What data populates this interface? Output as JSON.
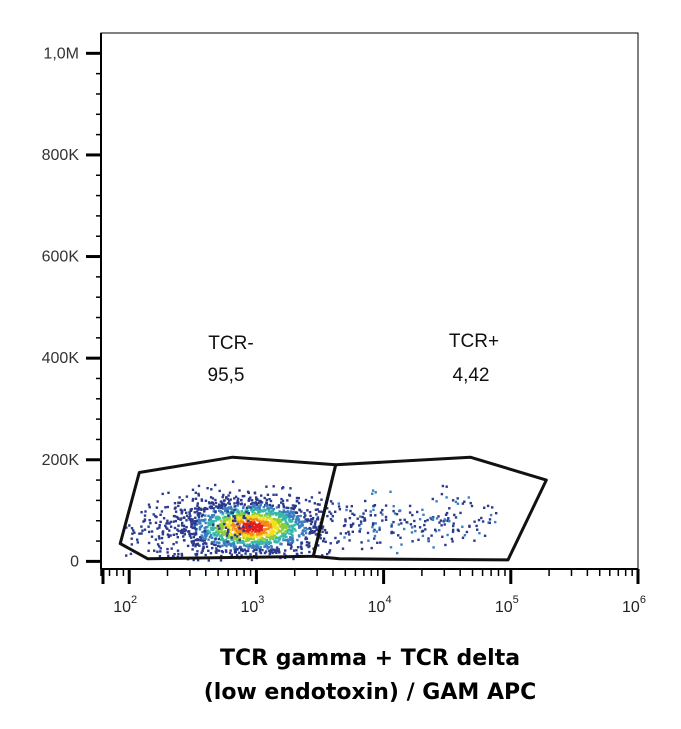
{
  "chart_data": {
    "type": "scatter",
    "x_scale": "log",
    "xlabel": [
      "TCR gamma + TCR delta",
      "(low endotoxin) / GAM APC"
    ],
    "ylabel": "",
    "xlim": [
      60,
      1000000
    ],
    "ylim": [
      -15000,
      1040000
    ],
    "yticks": [
      {
        "value": 0,
        "label": "0"
      },
      {
        "value": 200000,
        "label": "200K"
      },
      {
        "value": 400000,
        "label": "400K"
      },
      {
        "value": 600000,
        "label": "600K"
      },
      {
        "value": 800000,
        "label": "800K"
      },
      {
        "value": 1000000,
        "label": "1,0M"
      }
    ],
    "xticks": [
      {
        "value": 100,
        "base": "10",
        "exp": "2"
      },
      {
        "value": 1000,
        "base": "10",
        "exp": "3"
      },
      {
        "value": 10000,
        "base": "10",
        "exp": "4"
      },
      {
        "value": 100000,
        "base": "10",
        "exp": "5"
      },
      {
        "value": 1000000,
        "base": "10",
        "exp": "6"
      }
    ],
    "gates": [
      {
        "name": "TCR-",
        "percent": "95,5",
        "polygon": [
          [
            85,
            35000
          ],
          [
            140,
            5000
          ],
          [
            2800,
            10000
          ],
          [
            4200,
            190000
          ],
          [
            650,
            205000
          ],
          [
            120,
            175000
          ]
        ]
      },
      {
        "name": "TCR+",
        "percent": "4,42",
        "polygon": [
          [
            4200,
            190000
          ],
          [
            48000,
            205000
          ],
          [
            190000,
            160000
          ],
          [
            95000,
            3000
          ],
          [
            4500,
            5000
          ],
          [
            2800,
            10000
          ]
        ]
      }
    ],
    "populations": [
      {
        "gate": "TCR-",
        "center_x": 900,
        "center_y": 70000,
        "event_share": 95.5
      },
      {
        "gate": "TCR+",
        "center_x": 18000,
        "center_y": 80000,
        "event_share": 4.42
      }
    ],
    "density_colors": [
      "#2b3a8c",
      "#3a7fc0",
      "#36b8a8",
      "#8ccd3c",
      "#f2e21c",
      "#f58a1c",
      "#e02020"
    ],
    "grid": false,
    "legend": "none"
  }
}
